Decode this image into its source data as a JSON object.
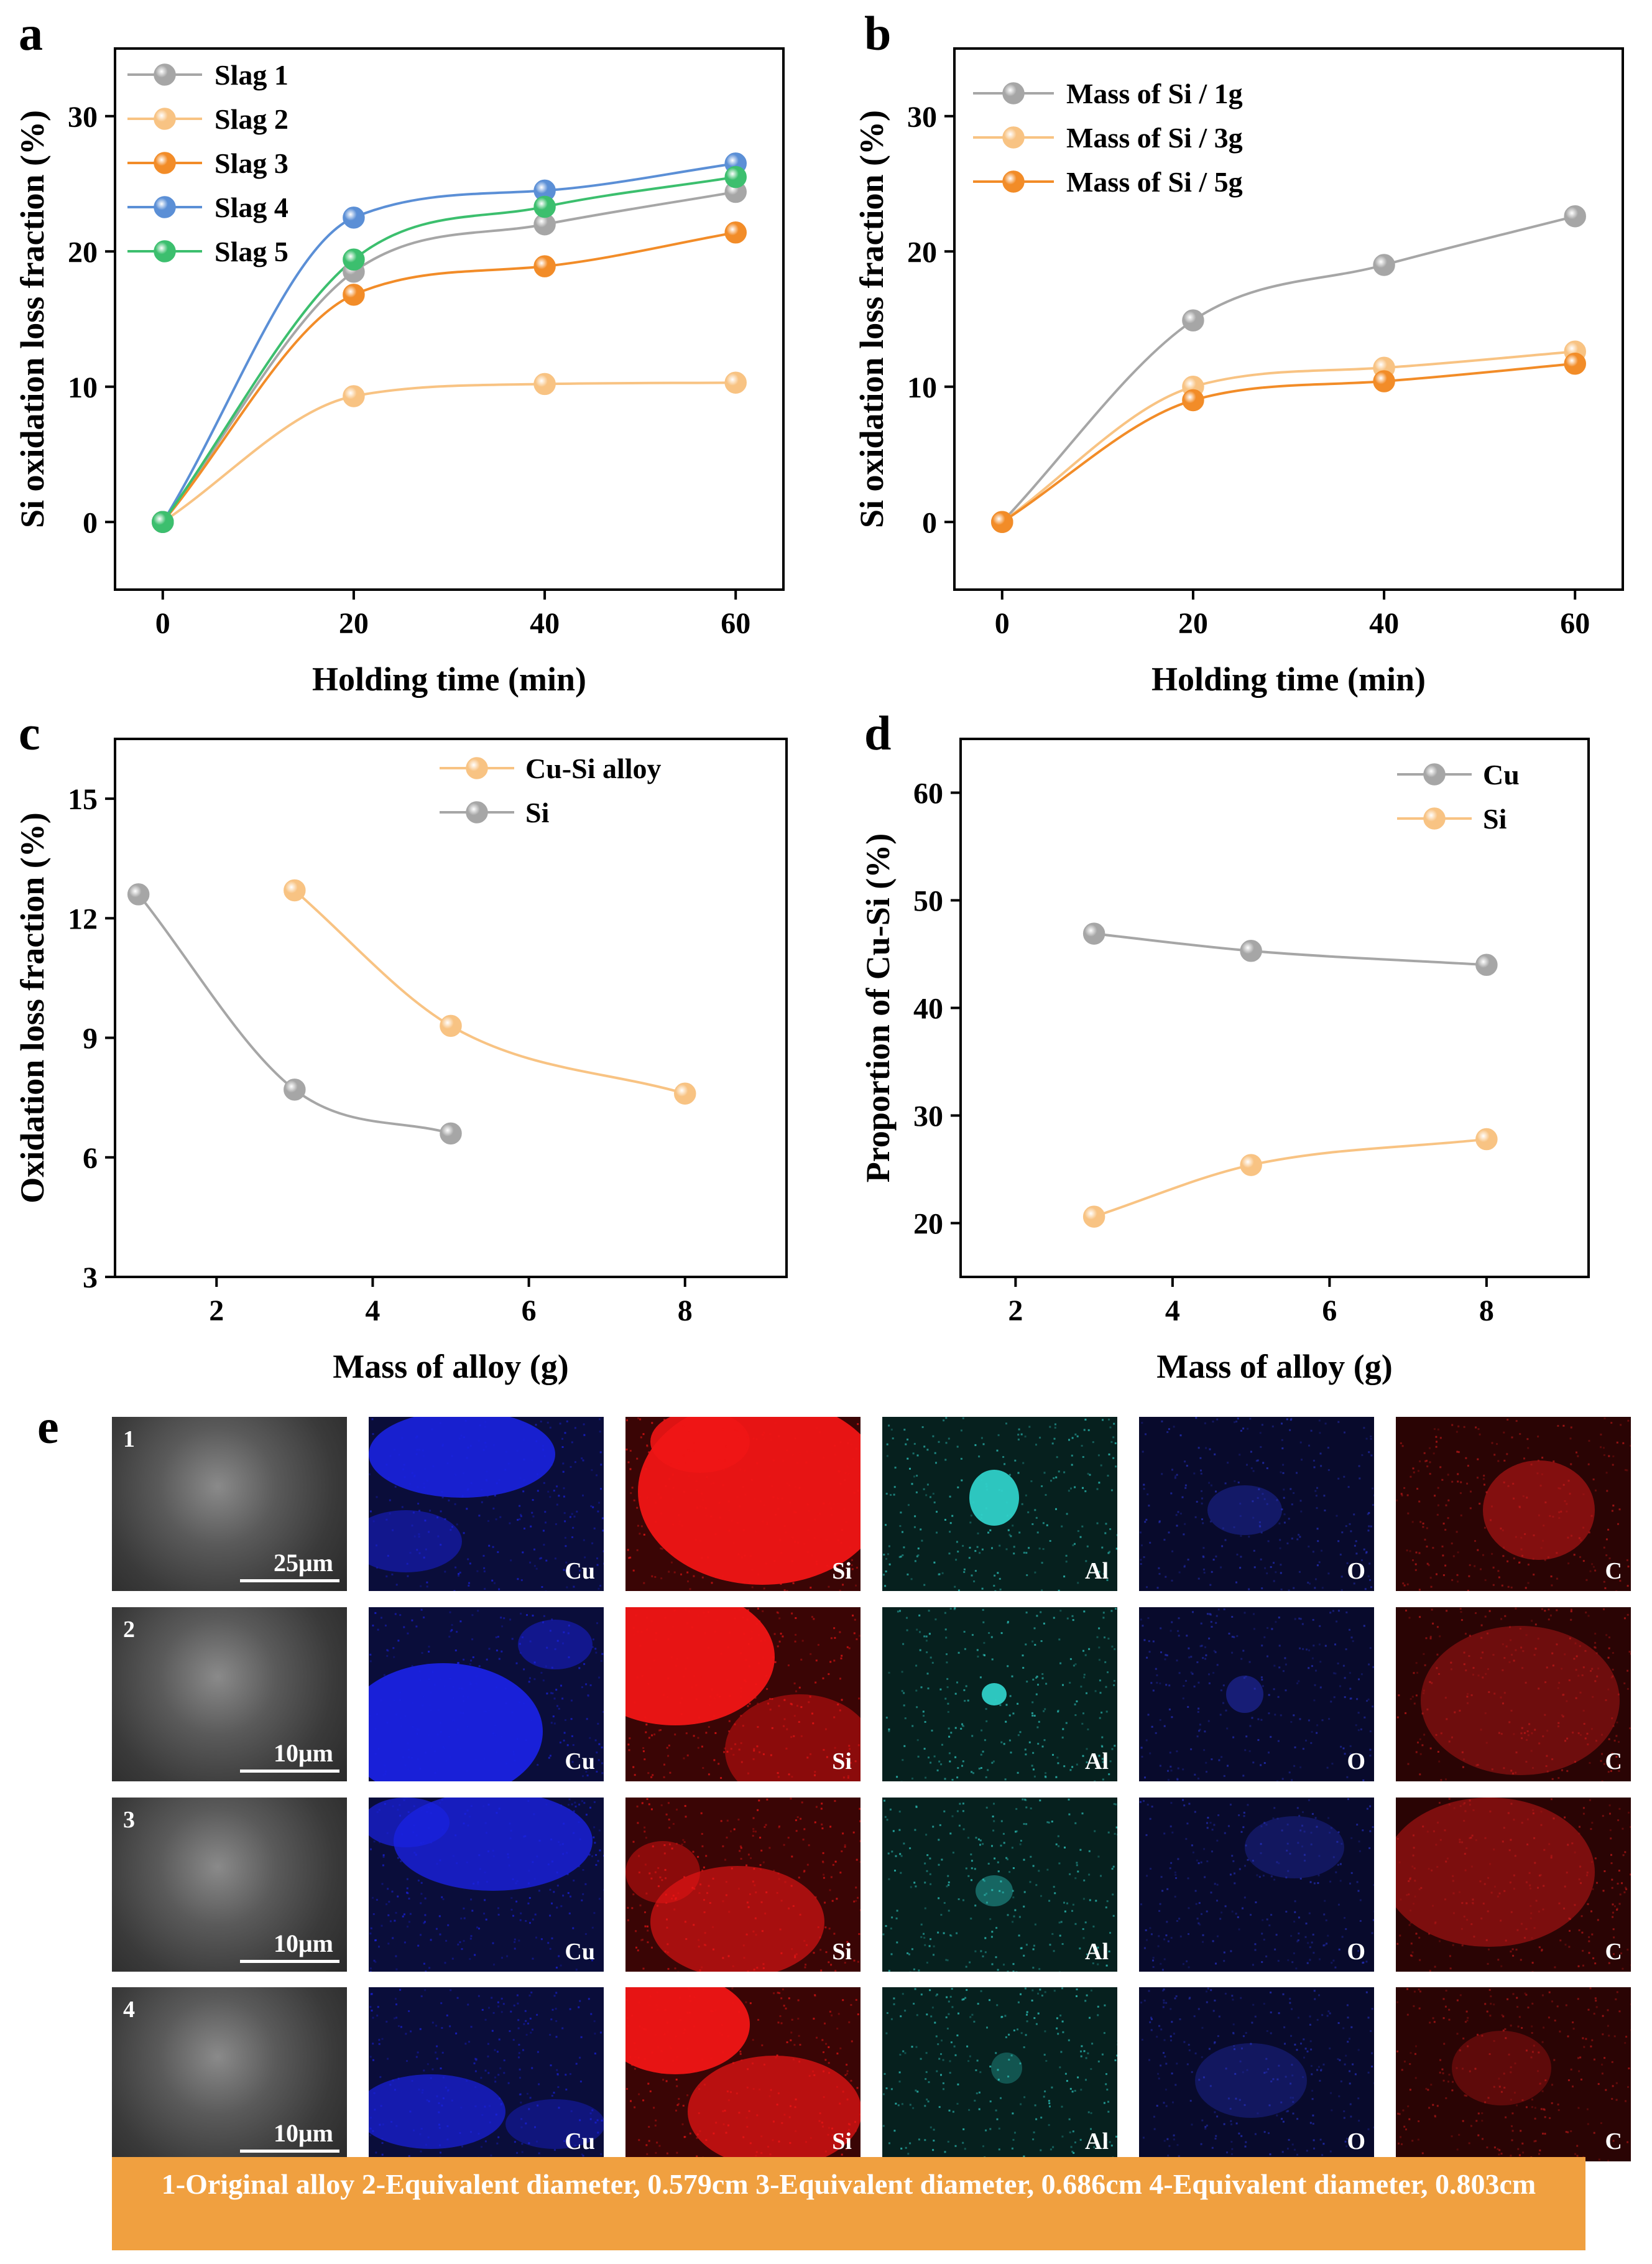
{
  "colors": {
    "gray": "#a6a6a6",
    "light_orange": "#f8c383",
    "orange": "#f28c28",
    "blue": "#5b8fd6",
    "green": "#3cbf6e",
    "caption_bg": "#f0a040",
    "cu_map": "#1a22e0",
    "si_map": "#f01515",
    "al_map": "#2fd0c8",
    "o_map": "#2530c0",
    "c_map": "#c01818"
  },
  "chart_data": [
    {
      "panel": "a",
      "type": "line",
      "xlabel": "Holding time (min)",
      "ylabel": "Si oxidation loss fraction (%)",
      "xlim": [
        -5,
        65
      ],
      "ylim": [
        -5,
        35
      ],
      "xticks": [
        0,
        20,
        40,
        60
      ],
      "yticks": [
        0,
        10,
        20,
        30
      ],
      "x": [
        0,
        20,
        40,
        60
      ],
      "legend_position": "top-left",
      "series": [
        {
          "name": "Slag 1",
          "color": "#a6a6a6",
          "values": [
            0,
            18.5,
            22.0,
            24.4
          ]
        },
        {
          "name": "Slag 2",
          "color": "#f8c383",
          "values": [
            0,
            9.3,
            10.2,
            10.3
          ]
        },
        {
          "name": "Slag 3",
          "color": "#f28c28",
          "values": [
            0,
            16.8,
            18.9,
            21.4
          ]
        },
        {
          "name": "Slag 4",
          "color": "#5b8fd6",
          "values": [
            0,
            22.5,
            24.5,
            26.5
          ]
        },
        {
          "name": "Slag 5",
          "color": "#3cbf6e",
          "values": [
            0,
            19.4,
            23.3,
            25.5
          ]
        }
      ]
    },
    {
      "panel": "b",
      "type": "line",
      "xlabel": "Holding time (min)",
      "ylabel": "Si oxidation loss fraction (%)",
      "xlim": [
        -5,
        65
      ],
      "ylim": [
        -5,
        35
      ],
      "xticks": [
        0,
        20,
        40,
        60
      ],
      "yticks": [
        0,
        10,
        20,
        30
      ],
      "x": [
        0,
        20,
        40,
        60
      ],
      "legend_position": "top-left",
      "series": [
        {
          "name": "Mass of Si / 1g",
          "color": "#a6a6a6",
          "values": [
            0,
            14.9,
            19.0,
            22.6
          ]
        },
        {
          "name": "Mass of Si / 3g",
          "color": "#f8c383",
          "values": [
            0,
            10.0,
            11.4,
            12.6
          ]
        },
        {
          "name": "Mass of Si / 5g",
          "color": "#f28c28",
          "values": [
            0,
            9.0,
            10.4,
            11.7
          ]
        }
      ]
    },
    {
      "panel": "c",
      "type": "line",
      "xlabel": "Mass of alloy (g)",
      "ylabel": "Oxidation loss fraction (%)",
      "xlim": [
        0.7,
        9.3
      ],
      "ylim": [
        3,
        16.5
      ],
      "xticks": [
        2,
        4,
        6,
        8
      ],
      "yticks": [
        3,
        6,
        9,
        12,
        15
      ],
      "legend_position": "top-right",
      "series": [
        {
          "name": "Cu-Si alloy",
          "color": "#f8c383",
          "x": [
            3,
            5,
            8
          ],
          "values": [
            12.7,
            9.3,
            7.6
          ]
        },
        {
          "name": "Si",
          "color": "#a6a6a6",
          "x": [
            1,
            3,
            5
          ],
          "values": [
            12.6,
            7.7,
            6.6
          ]
        }
      ]
    },
    {
      "panel": "d",
      "type": "line",
      "xlabel": "Mass of alloy (g)",
      "ylabel": "Proportion of Cu-Si  (%)",
      "xlim": [
        1.3,
        9.3
      ],
      "ylim": [
        15,
        65
      ],
      "xticks": [
        2,
        4,
        6,
        8
      ],
      "yticks": [
        20,
        30,
        40,
        50,
        60
      ],
      "legend_position": "top-right",
      "series": [
        {
          "name": "Cu",
          "color": "#a6a6a6",
          "x": [
            3,
            5,
            8
          ],
          "values": [
            46.9,
            45.3,
            44.0
          ]
        },
        {
          "name": "Si",
          "color": "#f8c383",
          "x": [
            3,
            5,
            8
          ],
          "values": [
            20.6,
            25.4,
            27.8
          ]
        }
      ]
    }
  ],
  "panel_e": {
    "letter": "e",
    "rows": [
      {
        "index": "1",
        "scale": "25μm"
      },
      {
        "index": "2",
        "scale": "10μm"
      },
      {
        "index": "3",
        "scale": "10μm"
      },
      {
        "index": "4",
        "scale": "10μm"
      }
    ],
    "elements": [
      "Cu",
      "Si",
      "Al",
      "O",
      "C"
    ],
    "caption": "1-Original alloy  2-Equivalent diameter, 0.579cm  3-Equivalent diameter, 0.686cm  4-Equivalent diameter, 0.803cm"
  }
}
